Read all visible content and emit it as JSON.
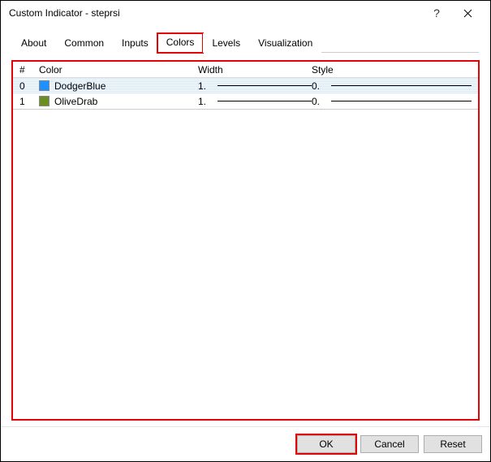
{
  "window": {
    "title": "Custom Indicator - steprsi"
  },
  "tabs": {
    "about": "About",
    "common": "Common",
    "inputs": "Inputs",
    "colors": "Colors",
    "levels": "Levels",
    "visualization": "Visualization",
    "active": "colors"
  },
  "grid": {
    "headers": {
      "index": "#",
      "color": "Color",
      "width": "Width",
      "style": "Style"
    },
    "rows": [
      {
        "index": "0",
        "color_name": "DodgerBlue",
        "color_hex": "#1e90ff",
        "width": "1.",
        "style": "0.",
        "selected": true
      },
      {
        "index": "1",
        "color_name": "OliveDrab",
        "color_hex": "#6b8e23",
        "width": "1.",
        "style": "0.",
        "selected": false
      }
    ]
  },
  "buttons": {
    "ok": "OK",
    "cancel": "Cancel",
    "reset": "Reset"
  }
}
